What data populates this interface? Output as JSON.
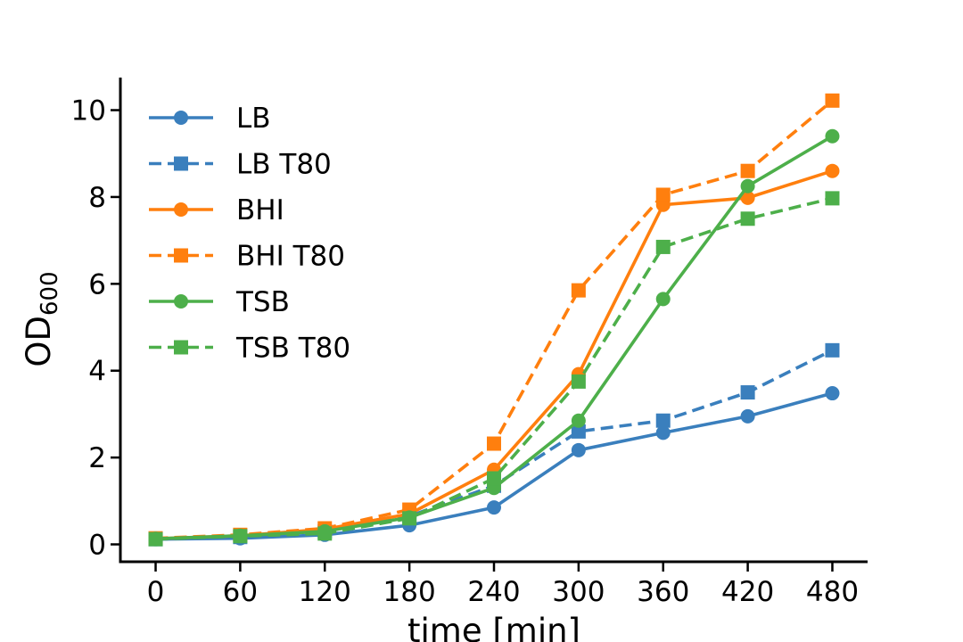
{
  "chart_data": {
    "type": "line",
    "xlabel": "time [min]",
    "ylabel": {
      "main": "OD",
      "sub": "600"
    },
    "x": [
      0,
      60,
      120,
      180,
      240,
      300,
      360,
      420,
      480
    ],
    "xticks": [
      0,
      60,
      120,
      180,
      240,
      300,
      360,
      420,
      480
    ],
    "yticks": [
      0,
      2,
      4,
      6,
      8,
      10
    ],
    "xlim": [
      -25,
      505
    ],
    "ylim": [
      -0.4,
      10.75
    ],
    "grid": false,
    "legend": "top-left",
    "series": [
      {
        "name": "LB",
        "color": "#3a7fbd",
        "linestyle": "solid",
        "marker": "circle",
        "values": [
          0.12,
          0.14,
          0.22,
          0.44,
          0.85,
          2.17,
          2.57,
          2.95,
          3.48
        ]
      },
      {
        "name": "LB T80",
        "color": "#3a7fbd",
        "linestyle": "dashed",
        "marker": "square",
        "values": [
          0.12,
          0.17,
          0.3,
          0.65,
          1.35,
          2.6,
          2.85,
          3.5,
          4.47
        ]
      },
      {
        "name": "BHI",
        "color": "#ff7f0e",
        "linestyle": "solid",
        "marker": "circle",
        "values": [
          0.13,
          0.2,
          0.35,
          0.7,
          1.72,
          3.92,
          7.82,
          7.98,
          8.6
        ]
      },
      {
        "name": "BHI T80",
        "color": "#ff7f0e",
        "linestyle": "dashed",
        "marker": "square",
        "values": [
          0.14,
          0.22,
          0.37,
          0.8,
          2.32,
          5.85,
          8.05,
          8.6,
          10.22
        ]
      },
      {
        "name": "TSB",
        "color": "#4daf4a",
        "linestyle": "solid",
        "marker": "circle",
        "values": [
          0.13,
          0.2,
          0.3,
          0.62,
          1.3,
          2.85,
          5.65,
          8.25,
          9.4
        ]
      },
      {
        "name": "TSB T80",
        "color": "#4daf4a",
        "linestyle": "dashed",
        "marker": "square",
        "values": [
          0.12,
          0.19,
          0.25,
          0.6,
          1.52,
          3.75,
          6.85,
          7.5,
          7.97
        ]
      }
    ]
  }
}
